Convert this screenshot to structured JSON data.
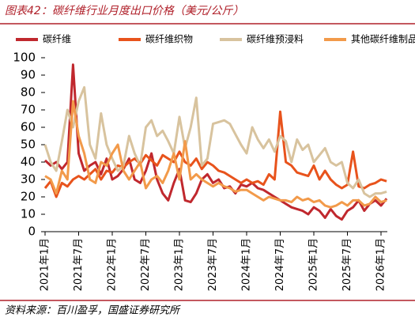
{
  "chart_data": {
    "type": "line",
    "title": "图表42：碳纤维行业月度出口价格（美元/公斤）",
    "source": "资料来源：百川盈孚，国盛证券研究所",
    "legend": "top",
    "categories": [
      "2021年1月",
      null,
      null,
      null,
      null,
      null,
      "2021年7月",
      null,
      null,
      null,
      null,
      null,
      "2022年1月",
      null,
      null,
      null,
      null,
      null,
      "2022年7月",
      null,
      null,
      null,
      null,
      null,
      "2023年1月",
      null,
      null,
      null,
      null,
      null,
      "2023年7月",
      null,
      null,
      null,
      null,
      null,
      "2024年1月",
      null,
      null,
      null,
      null,
      null,
      "2024年7月",
      null,
      null,
      null,
      null,
      null,
      "2025年1月",
      null,
      null,
      null,
      null,
      null,
      "2025年7月",
      null,
      null,
      null,
      null,
      null,
      "2026年1月",
      null
    ],
    "series": [
      {
        "name": "碳纤维",
        "color": "#c0282e",
        "values": [
          41,
          38,
          40,
          36,
          40,
          96,
          45,
          35,
          38,
          40,
          33,
          42,
          30,
          32,
          36,
          42,
          30,
          28,
          35,
          45,
          30,
          22,
          18,
          28,
          36,
          18,
          17,
          22,
          30,
          33,
          28,
          30,
          25,
          26,
          22,
          27,
          26,
          28,
          25,
          24,
          22,
          20,
          18,
          16,
          14,
          13,
          12,
          10,
          14,
          12,
          8,
          13,
          9,
          7,
          12,
          14,
          18,
          12,
          16,
          18,
          15,
          19
        ]
      },
      {
        "name": "碳纤维织物",
        "color": "#e8531c",
        "values": [
          25,
          29,
          20,
          28,
          26,
          30,
          32,
          30,
          33,
          36,
          30,
          35,
          34,
          38,
          37,
          40,
          42,
          39,
          44,
          41,
          38,
          44,
          42,
          40,
          46,
          40,
          38,
          42,
          36,
          40,
          38,
          35,
          34,
          32,
          30,
          28,
          30,
          28,
          29,
          27,
          33,
          30,
          69,
          40,
          38,
          34,
          33,
          32,
          38,
          30,
          35,
          30,
          27,
          25,
          27,
          46,
          26,
          25,
          27,
          28,
          30,
          29
        ]
      },
      {
        "name": "碳纤维预浸料",
        "color": "#d8c39e",
        "values": [
          50,
          40,
          35,
          52,
          70,
          60,
          75,
          83,
          50,
          42,
          68,
          50,
          42,
          35,
          38,
          55,
          45,
          38,
          60,
          64,
          55,
          58,
          52,
          45,
          66,
          48,
          60,
          77,
          38,
          42,
          62,
          63,
          64,
          62,
          56,
          50,
          45,
          60,
          53,
          48,
          53,
          46,
          55,
          52,
          40,
          53,
          47,
          50,
          40,
          44,
          48,
          40,
          38,
          40,
          28,
          25,
          30,
          22,
          20,
          22,
          22,
          23
        ]
      },
      {
        "name": "其他碳纤维制品",
        "color": "#f29a4a",
        "values": [
          32,
          30,
          22,
          35,
          30,
          75,
          55,
          45,
          30,
          28,
          40,
          38,
          45,
          50,
          35,
          30,
          35,
          40,
          25,
          30,
          32,
          28,
          35,
          45,
          30,
          52,
          30,
          33,
          30,
          28,
          26,
          28,
          26,
          25,
          23,
          24,
          24,
          22,
          20,
          18,
          20,
          19,
          18,
          18,
          17,
          20,
          18,
          19,
          17,
          18,
          15,
          14,
          15,
          17,
          15,
          18,
          18,
          15,
          16,
          20,
          17,
          18
        ]
      }
    ],
    "ylim": [
      0,
      100
    ],
    "yticks": [
      0,
      10,
      20,
      30,
      40,
      50,
      60,
      70,
      80,
      90,
      100
    ]
  }
}
